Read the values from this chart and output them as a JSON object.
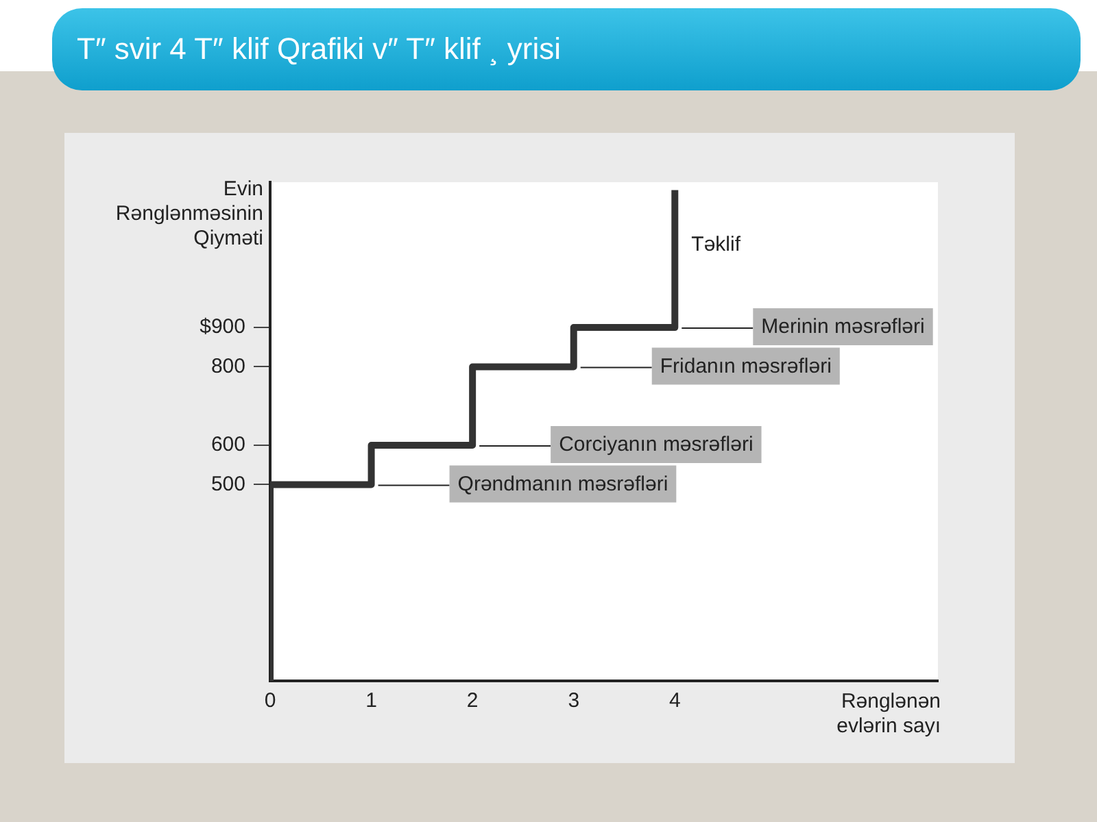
{
  "chart_data": {
    "type": "line",
    "title": "T″ svir 4 T″ klif Qrafiki v″  T″ klif ¸ yrisi",
    "ylabel": "Evin\nRənglənməsinin\nQiyməti",
    "xlabel": "Rənglənən\nevlərin sayı",
    "series": [
      {
        "name": "Təklif",
        "color": "#333333",
        "x": [
          0,
          0,
          1,
          1,
          2,
          2,
          3,
          3,
          4,
          4
        ],
        "values": [
          0,
          500,
          500,
          600,
          600,
          800,
          800,
          900,
          900,
          1250
        ]
      }
    ],
    "xlim": [
      0,
      6.6
    ],
    "xticks": [
      0,
      1,
      2,
      3,
      4
    ],
    "ylim": [
      0,
      1270
    ],
    "yticks": [
      500,
      600,
      800,
      {
        "value": 900,
        "label": "$900"
      }
    ],
    "annotations": [
      {
        "text": "Qrəndmanın məsrəfləri",
        "x": 1,
        "y": 500
      },
      {
        "text": "Corciyanın məsrəfləri",
        "x": 2,
        "y": 600
      },
      {
        "text": "Fridanın məsrəfləri",
        "x": 3,
        "y": 800
      },
      {
        "text": "Merinin məsrəfləri",
        "x": 4,
        "y": 900
      }
    ],
    "grid": false,
    "legend": false,
    "marker": "none",
    "line_style": "solid"
  }
}
